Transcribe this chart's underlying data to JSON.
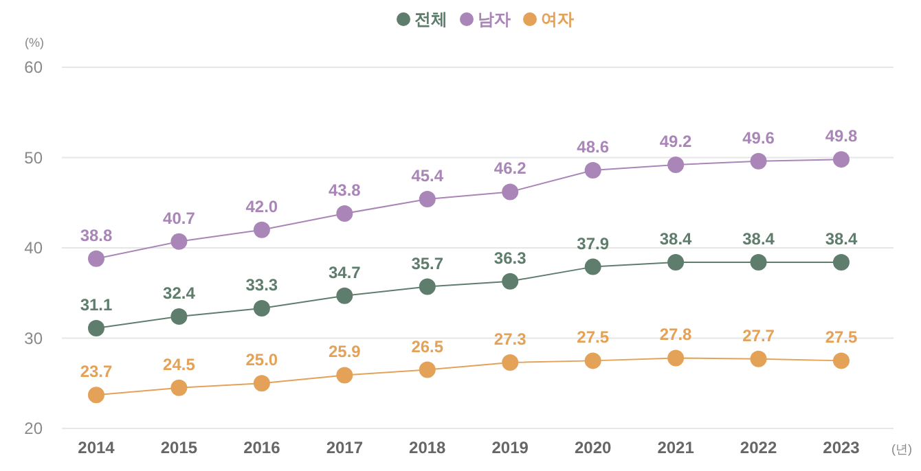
{
  "chart_data": {
    "type": "line",
    "ylabel": "(%)",
    "xlabel": "(년)",
    "categories": [
      "2014",
      "2015",
      "2016",
      "2017",
      "2018",
      "2019",
      "2020",
      "2021",
      "2022",
      "2023"
    ],
    "series": [
      {
        "name": "전체",
        "color": "#5e7d6c",
        "values": [
          31.1,
          32.4,
          33.3,
          34.7,
          35.7,
          36.3,
          37.9,
          38.4,
          38.4,
          38.4
        ],
        "value_labels": [
          "31.1",
          "32.4",
          "33.3",
          "34.7",
          "35.7",
          "36.3",
          "37.9",
          "38.4",
          "38.4",
          "38.4"
        ]
      },
      {
        "name": "남자",
        "color": "#a985b8",
        "values": [
          38.8,
          40.7,
          42.0,
          43.8,
          45.4,
          46.2,
          48.6,
          49.2,
          49.6,
          49.8
        ],
        "value_labels": [
          "38.8",
          "40.7",
          "42.0",
          "43.8",
          "45.4",
          "46.2",
          "48.6",
          "49.2",
          "49.6",
          "49.8"
        ]
      },
      {
        "name": "여자",
        "color": "#e3a257",
        "values": [
          23.7,
          24.5,
          25.0,
          25.9,
          26.5,
          27.3,
          27.5,
          27.8,
          27.7,
          27.5
        ],
        "value_labels": [
          "23.7",
          "24.5",
          "25.0",
          "25.9",
          "26.5",
          "27.3",
          "27.5",
          "27.8",
          "27.7",
          "27.5"
        ]
      }
    ],
    "ylim": [
      20,
      60
    ],
    "yticks": [
      20,
      30,
      40,
      50,
      60
    ],
    "grid": "y",
    "legend": "top",
    "marker": "circle"
  }
}
